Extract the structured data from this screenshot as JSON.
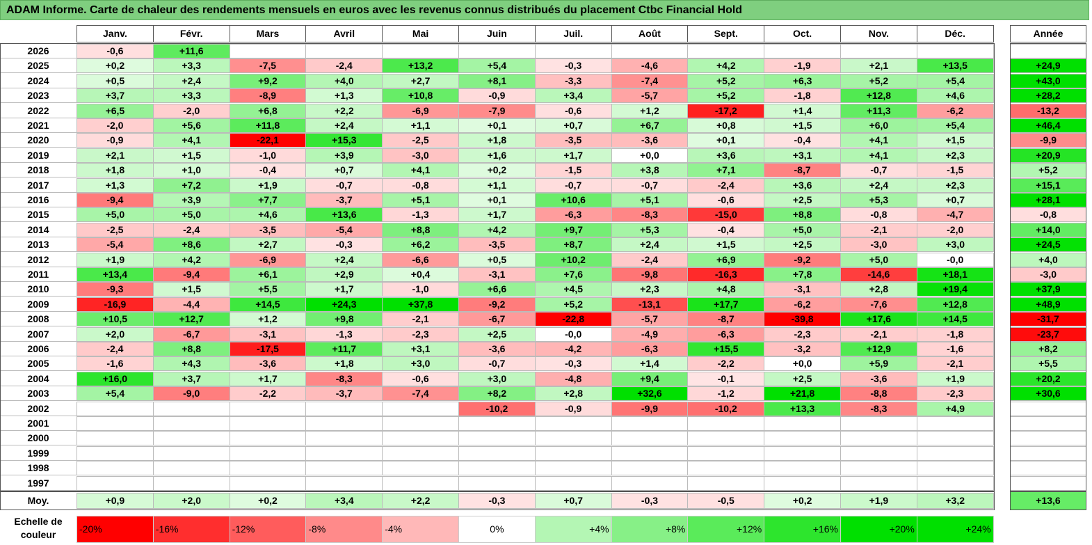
{
  "title": "ADAM Informe. Carte de chaleur des rendements mensuels en euros avec les revenus connus distribués du placement Ctbc Financial Hold",
  "chart_data": {
    "type": "heatmap",
    "title": "ADAM Informe. Carte de chaleur des rendements mensuels en euros avec les revenus connus distribués du placement Ctbc Financial Hold",
    "months": [
      "Janv.",
      "Févr.",
      "Mars",
      "Avril",
      "Mai",
      "Juin",
      "Juil.",
      "Août",
      "Sept.",
      "Oct.",
      "Nov.",
      "Déc."
    ],
    "year_header": "Année",
    "rows": [
      {
        "year": "2026",
        "months": [
          "-0,6",
          "+11,6",
          "",
          "",
          "",
          "",
          "",
          "",
          "",
          "",
          "",
          ""
        ],
        "annual": ""
      },
      {
        "year": "2025",
        "months": [
          "+0,2",
          "+3,3",
          "-7,5",
          "-2,4",
          "+13,2",
          "+5,4",
          "-0,3",
          "-4,6",
          "+4,2",
          "-1,9",
          "+2,1",
          "+13,5"
        ],
        "annual": "+24,9"
      },
      {
        "year": "2024",
        "months": [
          "+0,5",
          "+2,4",
          "+9,2",
          "+4,0",
          "+2,7",
          "+8,1",
          "-3,3",
          "-7,4",
          "+5,2",
          "+6,3",
          "+5,2",
          "+5,4"
        ],
        "annual": "+43,0"
      },
      {
        "year": "2023",
        "months": [
          "+3,7",
          "+3,3",
          "-8,9",
          "+1,3",
          "+10,8",
          "-0,9",
          "+3,4",
          "-5,7",
          "+5,2",
          "-1,8",
          "+12,8",
          "+4,6"
        ],
        "annual": "+28,2"
      },
      {
        "year": "2022",
        "months": [
          "+6,5",
          "-2,0",
          "+6,8",
          "+2,2",
          "-6,9",
          "-7,9",
          "-0,6",
          "+1,2",
          "-17,2",
          "+1,4",
          "+11,3",
          "-6,2"
        ],
        "annual": "-13,2"
      },
      {
        "year": "2021",
        "months": [
          "-2,0",
          "+5,6",
          "+11,8",
          "+2,4",
          "+1,1",
          "+0,1",
          "+0,7",
          "+6,7",
          "+0,8",
          "+1,5",
          "+6,0",
          "+5,4"
        ],
        "annual": "+46,4"
      },
      {
        "year": "2020",
        "months": [
          "-0,9",
          "+4,1",
          "-22,1",
          "+15,3",
          "-2,5",
          "+1,8",
          "-3,5",
          "-3,6",
          "+0,1",
          "-0,4",
          "+4,1",
          "+1,5"
        ],
        "annual": "-9,9"
      },
      {
        "year": "2019",
        "months": [
          "+2,1",
          "+1,5",
          "-1,0",
          "+3,9",
          "-3,0",
          "+1,6",
          "+1,7",
          "+0,0",
          "+3,6",
          "+3,1",
          "+4,1",
          "+2,3"
        ],
        "annual": "+20,9"
      },
      {
        "year": "2018",
        "months": [
          "+1,8",
          "+1,0",
          "-0,4",
          "+0,7",
          "+4,1",
          "+0,2",
          "-1,5",
          "+3,8",
          "+7,1",
          "-8,7",
          "-0,7",
          "-1,5"
        ],
        "annual": "+5,2"
      },
      {
        "year": "2017",
        "months": [
          "+1,3",
          "+7,2",
          "+1,9",
          "-0,7",
          "-0,8",
          "+1,1",
          "-0,7",
          "-0,7",
          "-2,4",
          "+3,6",
          "+2,4",
          "+2,3"
        ],
        "annual": "+15,1"
      },
      {
        "year": "2016",
        "months": [
          "-9,4",
          "+3,9",
          "+7,7",
          "-3,7",
          "+5,1",
          "+0,1",
          "+10,6",
          "+5,1",
          "-0,6",
          "+2,5",
          "+5,3",
          "+0,7"
        ],
        "annual": "+28,1"
      },
      {
        "year": "2015",
        "months": [
          "+5,0",
          "+5,0",
          "+4,6",
          "+13,6",
          "-1,3",
          "+1,7",
          "-6,3",
          "-8,3",
          "-15,0",
          "+8,8",
          "-0,8",
          "-4,7"
        ],
        "annual": "-0,8"
      },
      {
        "year": "2014",
        "months": [
          "-2,5",
          "-2,4",
          "-3,5",
          "-5,4",
          "+8,8",
          "+4,2",
          "+9,7",
          "+5,3",
          "-0,4",
          "+5,0",
          "-2,1",
          "-2,0"
        ],
        "annual": "+14,0"
      },
      {
        "year": "2013",
        "months": [
          "-5,4",
          "+8,6",
          "+2,7",
          "-0,3",
          "+6,2",
          "-3,5",
          "+8,7",
          "+2,4",
          "+1,5",
          "+2,5",
          "-3,0",
          "+3,0"
        ],
        "annual": "+24,5"
      },
      {
        "year": "2012",
        "months": [
          "+1,9",
          "+4,2",
          "-6,9",
          "+2,4",
          "-6,6",
          "+0,5",
          "+10,2",
          "-2,4",
          "+6,9",
          "-9,2",
          "+5,0",
          "-0,0"
        ],
        "annual": "+4,0"
      },
      {
        "year": "2011",
        "months": [
          "+13,4",
          "-9,4",
          "+6,1",
          "+2,9",
          "+0,4",
          "-3,1",
          "+7,6",
          "-9,8",
          "-16,3",
          "+7,8",
          "-14,6",
          "+18,1"
        ],
        "annual": "-3,0"
      },
      {
        "year": "2010",
        "months": [
          "-9,3",
          "+1,5",
          "+5,5",
          "+1,7",
          "-1,0",
          "+6,6",
          "+4,5",
          "+2,3",
          "+4,8",
          "-3,1",
          "+2,8",
          "+19,4"
        ],
        "annual": "+37,9"
      },
      {
        "year": "2009",
        "months": [
          "-16,9",
          "-4,4",
          "+14,5",
          "+24,3",
          "+37,8",
          "-9,2",
          "+5,2",
          "-13,1",
          "+17,7",
          "-6,2",
          "-7,6",
          "+12,8"
        ],
        "annual": "+48,9"
      },
      {
        "year": "2008",
        "months": [
          "+10,5",
          "+12,7",
          "+1,2",
          "+9,8",
          "-2,1",
          "-6,7",
          "-22,8",
          "-5,7",
          "-8,7",
          "-39,8",
          "+17,6",
          "+14,5"
        ],
        "annual": "-31,7"
      },
      {
        "year": "2007",
        "months": [
          "+2,0",
          "-6,7",
          "-3,1",
          "-1,3",
          "-2,3",
          "+2,5",
          "-0,0",
          "-4,9",
          "-6,3",
          "-2,3",
          "-2,1",
          "-1,8"
        ],
        "annual": "-23,7"
      },
      {
        "year": "2006",
        "months": [
          "-2,4",
          "+8,8",
          "-17,5",
          "+11,7",
          "+3,1",
          "-3,6",
          "-4,2",
          "-6,3",
          "+15,5",
          "-3,2",
          "+12,9",
          "-1,6"
        ],
        "annual": "+8,2"
      },
      {
        "year": "2005",
        "months": [
          "-1,6",
          "+4,3",
          "-3,6",
          "+1,8",
          "+3,0",
          "-0,7",
          "-0,3",
          "+1,4",
          "-2,2",
          "+0,0",
          "+5,9",
          "-2,1"
        ],
        "annual": "+5,5"
      },
      {
        "year": "2004",
        "months": [
          "+16,0",
          "+3,7",
          "+1,7",
          "-8,3",
          "-0,6",
          "+3,0",
          "-4,8",
          "+9,4",
          "-0,1",
          "+2,5",
          "-3,6",
          "+1,9"
        ],
        "annual": "+20,2"
      },
      {
        "year": "2003",
        "months": [
          "+5,4",
          "-9,0",
          "-2,2",
          "-3,7",
          "-7,4",
          "+8,2",
          "+2,8",
          "+32,6",
          "-1,2",
          "+21,8",
          "-8,8",
          "-2,3"
        ],
        "annual": "+30,6"
      },
      {
        "year": "2002",
        "months": [
          "",
          "",
          "",
          "",
          "",
          "-10,2",
          "-0,9",
          "-9,9",
          "-10,2",
          "+13,3",
          "-8,3",
          "+4,9"
        ],
        "annual": ""
      },
      {
        "year": "2001",
        "months": [
          "",
          "",
          "",
          "",
          "",
          "",
          "",
          "",
          "",
          "",
          "",
          ""
        ],
        "annual": ""
      },
      {
        "year": "2000",
        "months": [
          "",
          "",
          "",
          "",
          "",
          "",
          "",
          "",
          "",
          "",
          "",
          ""
        ],
        "annual": ""
      },
      {
        "year": "1999",
        "months": [
          "",
          "",
          "",
          "",
          "",
          "",
          "",
          "",
          "",
          "",
          "",
          ""
        ],
        "annual": ""
      },
      {
        "year": "1998",
        "months": [
          "",
          "",
          "",
          "",
          "",
          "",
          "",
          "",
          "",
          "",
          "",
          ""
        ],
        "annual": ""
      },
      {
        "year": "1997",
        "months": [
          "",
          "",
          "",
          "",
          "",
          "",
          "",
          "",
          "",
          "",
          "",
          ""
        ],
        "annual": ""
      }
    ],
    "average": {
      "label": "Moy.",
      "months": [
        "+0,9",
        "+2,0",
        "+0,2",
        "+3,4",
        "+2,2",
        "-0,3",
        "+0,7",
        "-0,3",
        "-0,5",
        "+0,2",
        "+1,9",
        "+3,2"
      ],
      "annual": "+13,6"
    },
    "scale": {
      "label": "Echelle de couleur",
      "entries": [
        "-20%",
        "-16%",
        "-12%",
        "-8%",
        "-4%",
        "0%",
        "+4%",
        "+8%",
        "+12%",
        "+16%",
        "+20%",
        "+24%"
      ]
    },
    "colors": {
      "negative_full": "#ff0000",
      "positive_full": "#00e000",
      "neutral": "#ffffff",
      "title_bg": "#7fcf7f"
    }
  }
}
